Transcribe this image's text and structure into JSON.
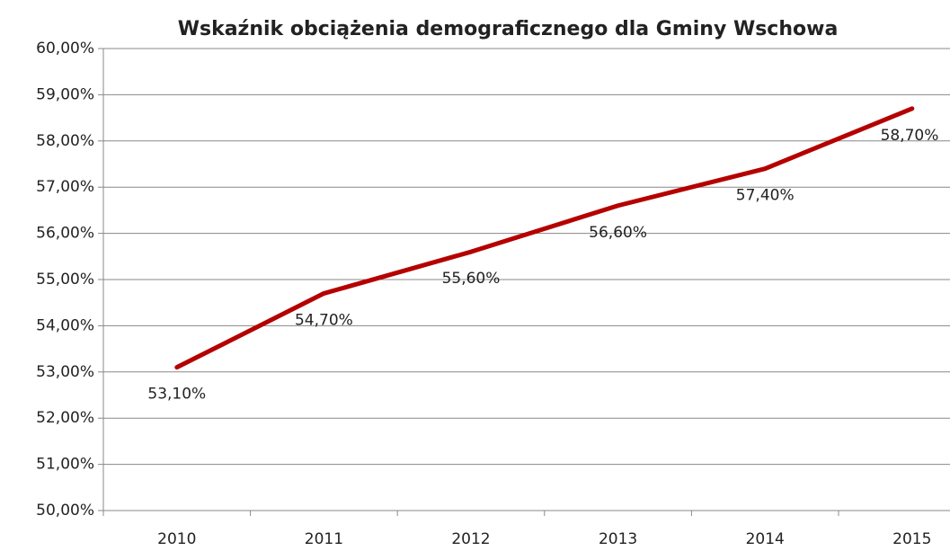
{
  "chart_data": {
    "type": "line",
    "title": "Wskaźnik obciążenia demograficznego dla Gminy Wschowa",
    "categories": [
      "2010",
      "2011",
      "2012",
      "2013",
      "2014",
      "2015"
    ],
    "values": [
      53.1,
      54.7,
      55.6,
      56.6,
      57.4,
      58.7
    ],
    "value_labels": [
      "53,10%",
      "54,70%",
      "55,60%",
      "56,60%",
      "57,40%",
      "58,70%"
    ],
    "color": "#b50000",
    "ylim": [
      50,
      60
    ],
    "yticks": [
      {
        "value": 50,
        "label": "50,00%"
      },
      {
        "value": 51,
        "label": "51,00%"
      },
      {
        "value": 52,
        "label": "52,00%"
      },
      {
        "value": 53,
        "label": "53,00%"
      },
      {
        "value": 54,
        "label": "54,00%"
      },
      {
        "value": 55,
        "label": "55,00%"
      },
      {
        "value": 56,
        "label": "56,00%"
      },
      {
        "value": 57,
        "label": "57,00%"
      },
      {
        "value": 58,
        "label": "58,00%"
      },
      {
        "value": 59,
        "label": "59,00%"
      },
      {
        "value": 60,
        "label": "60,00%"
      }
    ],
    "grid": true
  }
}
